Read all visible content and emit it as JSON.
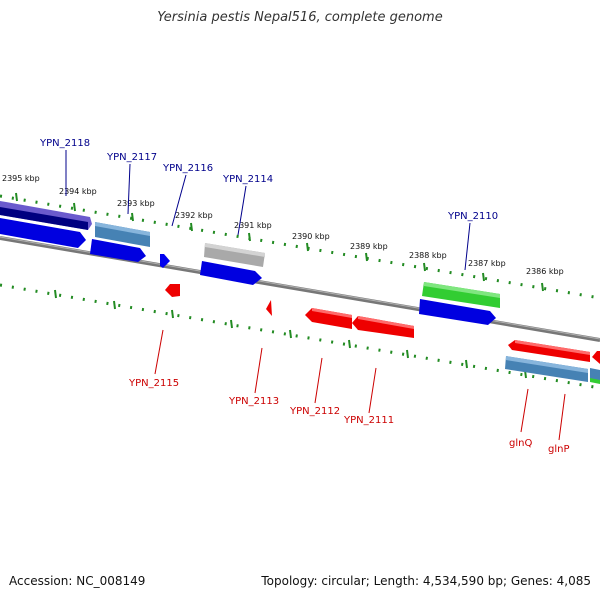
{
  "title": "Yersinia pestis Nepal516, complete genome",
  "footer": {
    "accession": "Accession: NC_008149",
    "summary": "Topology: circular; Length: 4,534,590 bp; Genes: 4,085"
  },
  "colors": {
    "forward_gene": "#0000ee",
    "reverse_gene": "#ee0000",
    "forward_label": "#00008b",
    "reverse_label": "#cc0000",
    "tick": "#228b22",
    "backbone": "#808080"
  },
  "scale": {
    "unit": "kbp",
    "labels": [
      "2395 kbp",
      "2394 kbp",
      "2393 kbp",
      "2392 kbp",
      "2391 kbp",
      "2390 kbp",
      "2389 kbp",
      "2388 kbp",
      "2387 kbp",
      "2386 kbp"
    ]
  },
  "genes_forward": [
    "YPN_2118",
    "YPN_2117",
    "YPN_2116",
    "YPN_2114",
    "YPN_2110"
  ],
  "genes_reverse": [
    "YPN_2115",
    "YPN_2113",
    "YPN_2112",
    "YPN_2111",
    "glnQ",
    "glnP"
  ]
}
